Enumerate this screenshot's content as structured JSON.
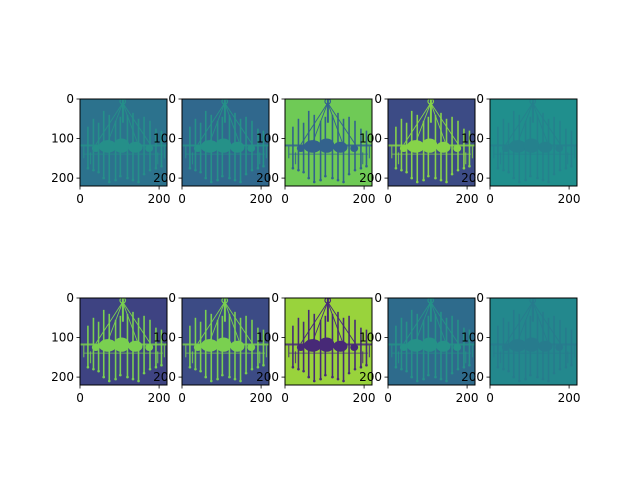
{
  "figure": {
    "description_colormap": "viridis",
    "panel_count": 10,
    "rows": 2,
    "cols": 5
  },
  "chart_data": {
    "type": "heatmap",
    "colormap": "viridis",
    "xlim": [
      0,
      220
    ],
    "ylim": [
      220,
      0
    ],
    "x_ticks": [
      0,
      200
    ],
    "y_ticks": [
      0,
      100,
      200
    ],
    "grid": false,
    "panels": [
      {
        "row": 0,
        "col": 0,
        "background_level": 0.38,
        "foreground_level": 0.55,
        "fg_light": true,
        "strength": 0.35
      },
      {
        "row": 0,
        "col": 1,
        "background_level": 0.34,
        "foreground_level": 0.55,
        "fg_light": true,
        "strength": 0.6
      },
      {
        "row": 0,
        "col": 2,
        "background_level": 0.8,
        "foreground_level": 0.32,
        "fg_light": false,
        "strength": 1.0
      },
      {
        "row": 0,
        "col": 3,
        "background_level": 0.2,
        "foreground_level": 0.82,
        "fg_light": true,
        "strength": 1.0
      },
      {
        "row": 0,
        "col": 4,
        "background_level": 0.5,
        "foreground_level": 0.42,
        "fg_light": false,
        "strength": 0.3
      },
      {
        "row": 1,
        "col": 0,
        "background_level": 0.18,
        "foreground_level": 0.8,
        "fg_light": true,
        "strength": 1.0
      },
      {
        "row": 1,
        "col": 1,
        "background_level": 0.2,
        "foreground_level": 0.8,
        "fg_light": true,
        "strength": 1.0
      },
      {
        "row": 1,
        "col": 2,
        "background_level": 0.88,
        "foreground_level": 0.12,
        "fg_light": false,
        "strength": 1.0
      },
      {
        "row": 1,
        "col": 3,
        "background_level": 0.35,
        "foreground_level": 0.55,
        "fg_light": true,
        "strength": 0.55
      },
      {
        "row": 1,
        "col": 4,
        "background_level": 0.47,
        "foreground_level": 0.4,
        "fg_light": false,
        "strength": 0.3
      }
    ]
  }
}
